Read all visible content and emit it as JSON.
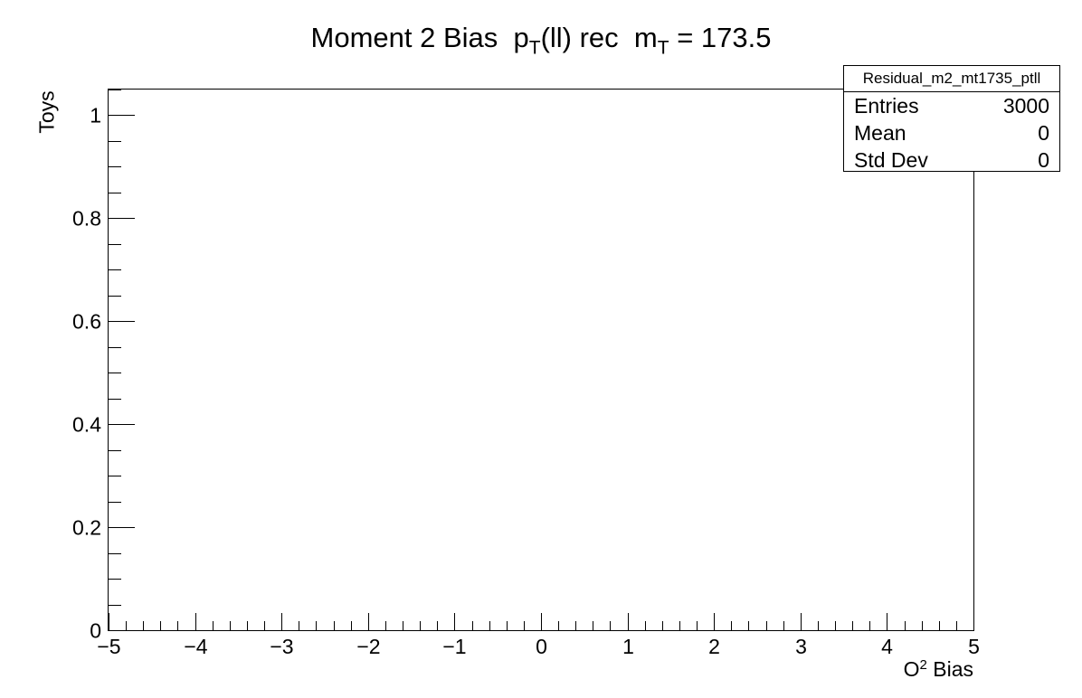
{
  "chart_data": {
    "type": "bar",
    "title": {
      "moment_label": "Moment 2 Bias",
      "pt_symbol": "p",
      "pt_sub": "T",
      "pt_rest": "(ll) rec",
      "mass_symbol": "m",
      "mass_sub": "T",
      "mass_rest": " = 173.5"
    },
    "xlabel": {
      "base": "O",
      "sup": "2",
      "rest": " Bias"
    },
    "ylabel": "Toys",
    "xlim": [
      -5,
      5
    ],
    "ylim": [
      0,
      1.05
    ],
    "x_ticks": [
      {
        "value": -5,
        "label": "−5"
      },
      {
        "value": -4,
        "label": "−4"
      },
      {
        "value": -3,
        "label": "−3"
      },
      {
        "value": -2,
        "label": "−2"
      },
      {
        "value": -1,
        "label": "−1"
      },
      {
        "value": 0,
        "label": "0"
      },
      {
        "value": 1,
        "label": "1"
      },
      {
        "value": 2,
        "label": "2"
      },
      {
        "value": 3,
        "label": "3"
      },
      {
        "value": 4,
        "label": "4"
      },
      {
        "value": 5,
        "label": "5"
      }
    ],
    "y_ticks": [
      {
        "value": 0,
        "label": "0"
      },
      {
        "value": 0.2,
        "label": "0.2"
      },
      {
        "value": 0.4,
        "label": "0.4"
      },
      {
        "value": 0.6,
        "label": "0.6"
      },
      {
        "value": 0.8,
        "label": "0.8"
      },
      {
        "value": 1.0,
        "label": "1"
      }
    ],
    "x_minor_per_major": 5,
    "y_minor_per_major": 4,
    "values": [],
    "grid": false,
    "stats": {
      "name": "Residual_m2_mt1735_ptll",
      "rows": [
        {
          "label": "Entries",
          "value": "3000"
        },
        {
          "label": "Mean",
          "value": "0"
        },
        {
          "label": "Std Dev",
          "value": "0"
        }
      ],
      "placement": "top-right"
    }
  }
}
